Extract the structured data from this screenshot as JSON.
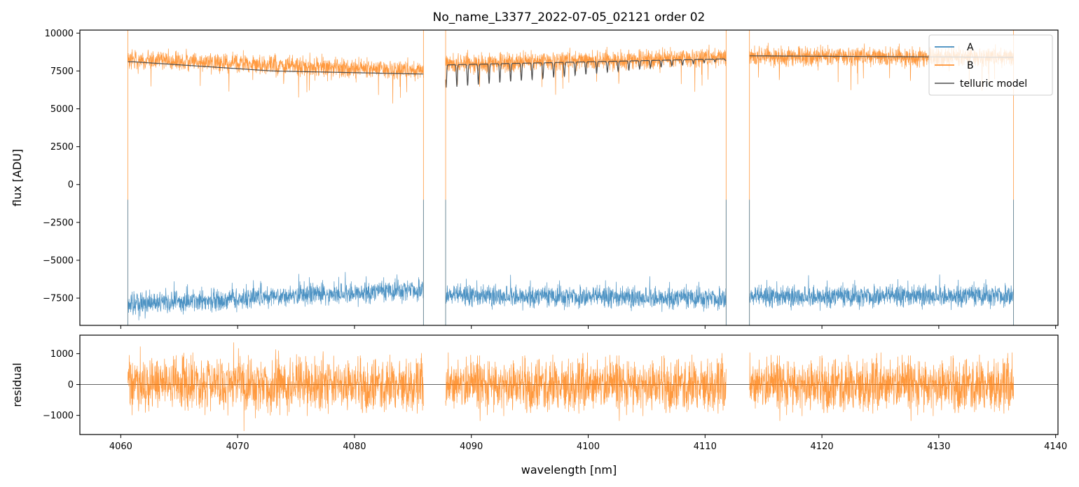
{
  "title": "No_name_L3377_2022-07-05_02121  order 02",
  "colors": {
    "A": "#1f77b4",
    "B": "#ff7f0e",
    "telluric": "#4d4d4d"
  },
  "chart_data": [
    {
      "type": "line",
      "name": "flux panel",
      "ylabel": "flux [ADU]",
      "xlim": [
        4056.5,
        4140.2
      ],
      "ylim": [
        -9300,
        10200
      ],
      "yticks": [
        -7500,
        -5000,
        -2500,
        0,
        2500,
        5000,
        7500,
        10000
      ],
      "ytick_labels": [
        "−7500",
        "−5000",
        "−2500",
        "0",
        "2500",
        "5000",
        "7500",
        "10000"
      ],
      "segments": [
        [
          4060.6,
          4085.9
        ],
        [
          4087.8,
          4111.8
        ],
        [
          4113.8,
          4136.4
        ]
      ],
      "legend": {
        "placement": "top-right",
        "entries": [
          "A",
          "B",
          "telluric model"
        ]
      },
      "series": [
        {
          "name": "A",
          "baseline": [
            [
              4060.6,
              -7900
            ],
            [
              4085.9,
              -6900
            ],
            [
              4087.8,
              -7300
            ],
            [
              4111.8,
              -7500
            ],
            [
              4113.8,
              -7400
            ],
            [
              4136.4,
              -7300
            ]
          ],
          "noise": 500
        },
        {
          "name": "B",
          "baseline": [
            [
              4060.6,
              8300
            ],
            [
              4085.9,
              7500
            ],
            [
              4087.8,
              8000
            ],
            [
              4111.8,
              8400
            ],
            [
              4113.8,
              8500
            ],
            [
              4136.4,
              8400
            ]
          ],
          "noise": 450
        },
        {
          "name": "telluric model",
          "baseline": [
            [
              4061.2,
              8100
            ],
            [
              4073,
              7500
            ],
            [
              4085.6,
              7300
            ],
            [
              4087.8,
              7900
            ],
            [
              4111.8,
              8300
            ],
            [
              4113.8,
              8500
            ],
            [
              4125,
              8450
            ],
            [
              4136.4,
              8400
            ]
          ]
        }
      ]
    },
    {
      "type": "line",
      "name": "residual panel",
      "xlabel": "wavelength [nm]",
      "ylabel": "residual",
      "xlim": [
        4056.5,
        4140.2
      ],
      "ylim": [
        -1620,
        1600
      ],
      "xticks": [
        4060,
        4070,
        4080,
        4090,
        4100,
        4110,
        4120,
        4130,
        4140
      ],
      "xtick_labels": [
        "4060",
        "4070",
        "4080",
        "4090",
        "4100",
        "4110",
        "4120",
        "4130",
        "4140"
      ],
      "yticks": [
        -1000,
        0,
        1000
      ],
      "ytick_labels": [
        "−1000",
        "0",
        "1000"
      ],
      "series": [
        {
          "name": "B residual",
          "noise": 600
        },
        {
          "name": "zero line",
          "values": [
            0
          ]
        }
      ]
    }
  ]
}
